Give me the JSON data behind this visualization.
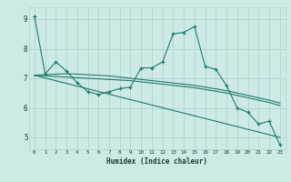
{
  "xlabel": "Humidex (Indice chaleur)",
  "background_color": "#ceeae6",
  "grid_color": "#aed4cf",
  "line_color": "#1e7a6e",
  "x_ticks": [
    0,
    1,
    2,
    3,
    4,
    5,
    6,
    7,
    8,
    9,
    10,
    11,
    12,
    13,
    14,
    15,
    16,
    17,
    18,
    19,
    20,
    21,
    22,
    23
  ],
  "ylim": [
    4.6,
    9.4
  ],
  "xlim": [
    -0.5,
    23.5
  ],
  "yticks": [
    5,
    6,
    7,
    8,
    9
  ],
  "series1_x": [
    0,
    1,
    2,
    3,
    4,
    5,
    6,
    7,
    8,
    9,
    10,
    11,
    12,
    13,
    14,
    15,
    16,
    17,
    18,
    19,
    20,
    21,
    22,
    23
  ],
  "series1_y": [
    9.1,
    7.15,
    7.55,
    7.25,
    6.85,
    6.55,
    6.45,
    6.55,
    6.65,
    6.7,
    7.35,
    7.35,
    7.55,
    8.5,
    8.55,
    8.75,
    7.4,
    7.3,
    6.75,
    6.0,
    5.85,
    5.45,
    5.55,
    4.75
  ],
  "series2_x": [
    0,
    1,
    2,
    3,
    4,
    5,
    6,
    7,
    8,
    9,
    10,
    11,
    12,
    13,
    14,
    15,
    16,
    17,
    18,
    19,
    20,
    21,
    22,
    23
  ],
  "series2_y": [
    7.1,
    7.08,
    7.06,
    7.04,
    7.02,
    7.0,
    6.98,
    6.96,
    6.94,
    6.92,
    6.88,
    6.84,
    6.8,
    6.76,
    6.72,
    6.68,
    6.62,
    6.56,
    6.5,
    6.42,
    6.34,
    6.26,
    6.18,
    6.08
  ],
  "series3_x": [
    0,
    1,
    2,
    3,
    4,
    5,
    6,
    7,
    8,
    9,
    10,
    11,
    12,
    13,
    14,
    15,
    16,
    17,
    18,
    19,
    20,
    21,
    22,
    23
  ],
  "series3_y": [
    7.1,
    7.12,
    7.14,
    7.15,
    7.14,
    7.12,
    7.1,
    7.08,
    7.04,
    7.0,
    6.96,
    6.92,
    6.88,
    6.84,
    6.8,
    6.76,
    6.7,
    6.64,
    6.58,
    6.5,
    6.42,
    6.34,
    6.26,
    6.16
  ],
  "series4_x": [
    0,
    23
  ],
  "series4_y": [
    7.1,
    5.0
  ]
}
